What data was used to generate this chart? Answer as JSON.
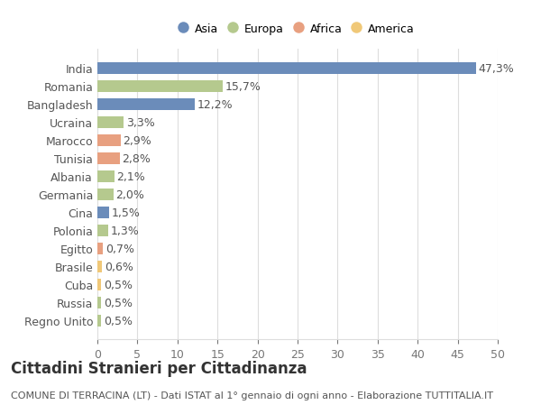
{
  "countries": [
    "India",
    "Romania",
    "Bangladesh",
    "Ucraina",
    "Marocco",
    "Tunisia",
    "Albania",
    "Germania",
    "Cina",
    "Polonia",
    "Egitto",
    "Brasile",
    "Cuba",
    "Russia",
    "Regno Unito"
  ],
  "values": [
    47.3,
    15.7,
    12.2,
    3.3,
    2.9,
    2.8,
    2.1,
    2.0,
    1.5,
    1.3,
    0.7,
    0.6,
    0.5,
    0.5,
    0.5
  ],
  "labels": [
    "47,3%",
    "15,7%",
    "12,2%",
    "3,3%",
    "2,9%",
    "2,8%",
    "2,1%",
    "2,0%",
    "1,5%",
    "1,3%",
    "0,7%",
    "0,6%",
    "0,5%",
    "0,5%",
    "0,5%"
  ],
  "colors": [
    "#6b8cba",
    "#b5c98e",
    "#6b8cba",
    "#b5c98e",
    "#e8a080",
    "#e8a080",
    "#b5c98e",
    "#b5c98e",
    "#6b8cba",
    "#b5c98e",
    "#e8a080",
    "#f0c878",
    "#f0c878",
    "#b5c98e",
    "#b5c98e"
  ],
  "legend_labels": [
    "Asia",
    "Europa",
    "Africa",
    "America"
  ],
  "legend_colors": [
    "#6b8cba",
    "#b5c98e",
    "#e8a080",
    "#f0c878"
  ],
  "title": "Cittadini Stranieri per Cittadinanza",
  "subtitle": "COMUNE DI TERRACINA (LT) - Dati ISTAT al 1° gennaio di ogni anno - Elaborazione TUTTITALIA.IT",
  "xlim": [
    0,
    50
  ],
  "xticks": [
    0,
    5,
    10,
    15,
    20,
    25,
    30,
    35,
    40,
    45,
    50
  ],
  "bg_color": "#ffffff",
  "grid_color": "#dddddd",
  "bar_height": 0.65,
  "label_fontsize": 9,
  "tick_fontsize": 9,
  "title_fontsize": 12,
  "subtitle_fontsize": 8
}
